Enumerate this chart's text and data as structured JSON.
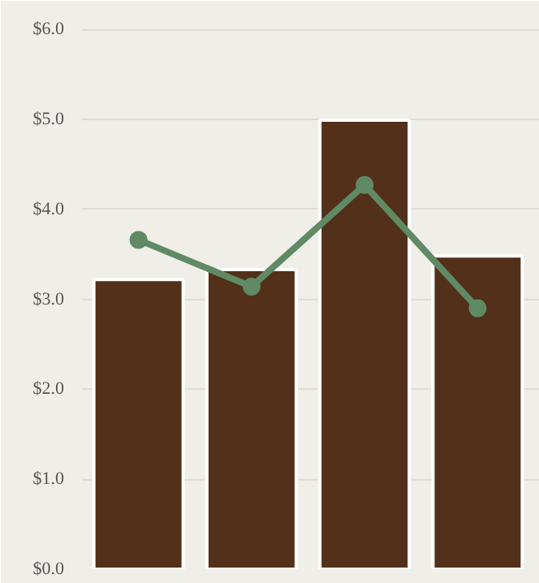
{
  "chart_data": {
    "type": "bar",
    "categories": [
      null,
      null,
      null,
      null
    ],
    "marker": "circle",
    "series": [
      {
        "color": "#52301a",
        "values": [
          3.22,
          3.33,
          4.99,
          3.48
        ]
      },
      {
        "type": "line",
        "color": "#5f8a64",
        "values": [
          3.66,
          3.14,
          4.27,
          2.9
        ]
      }
    ],
    "ylim": [
      0,
      6.1
    ],
    "yticks": [
      {
        "value": 0,
        "label": "$0.0"
      },
      {
        "value": 1,
        "label": "$1.0"
      },
      {
        "value": 2,
        "label": "$2.0"
      },
      {
        "value": 3,
        "label": "$3.0"
      },
      {
        "value": 4,
        "label": "$4.0"
      },
      {
        "value": 5,
        "label": "$5.0"
      },
      {
        "value": 6,
        "label": "$6.0"
      }
    ],
    "grid": "y",
    "tick_labels": "y"
  }
}
